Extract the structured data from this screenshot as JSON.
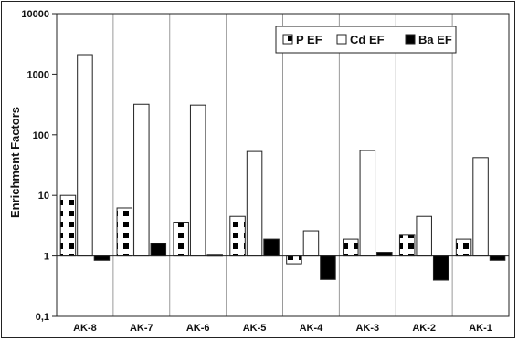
{
  "chart_data": {
    "type": "bar",
    "title": "",
    "xlabel": "",
    "ylabel": "Enrichment Factors",
    "yscale": "log",
    "ylim": [
      0.1,
      10000
    ],
    "ytick_labels": [
      "0,1",
      "1",
      "10",
      "100",
      "1000",
      "10000"
    ],
    "baseline": 1,
    "grid": "vertical",
    "legend_position": "top-right",
    "categories": [
      "AK-8",
      "AK-7",
      "AK-6",
      "AK-5",
      "AK-4",
      "AK-3",
      "AK-2",
      "AK-1"
    ],
    "series": [
      {
        "name": "P EF",
        "fill": "pattern-dots",
        "values": [
          10,
          6.2,
          3.5,
          4.5,
          0.72,
          1.9,
          2.2,
          1.9
        ]
      },
      {
        "name": "Cd EF",
        "fill": "#ffffff",
        "values": [
          2100,
          320,
          310,
          53,
          2.6,
          55,
          4.5,
          42
        ]
      },
      {
        "name": "Ba EF",
        "fill": "#000000",
        "values": [
          0.85,
          1.6,
          1.03,
          1.9,
          0.41,
          1.15,
          0.4,
          0.85
        ]
      }
    ]
  }
}
